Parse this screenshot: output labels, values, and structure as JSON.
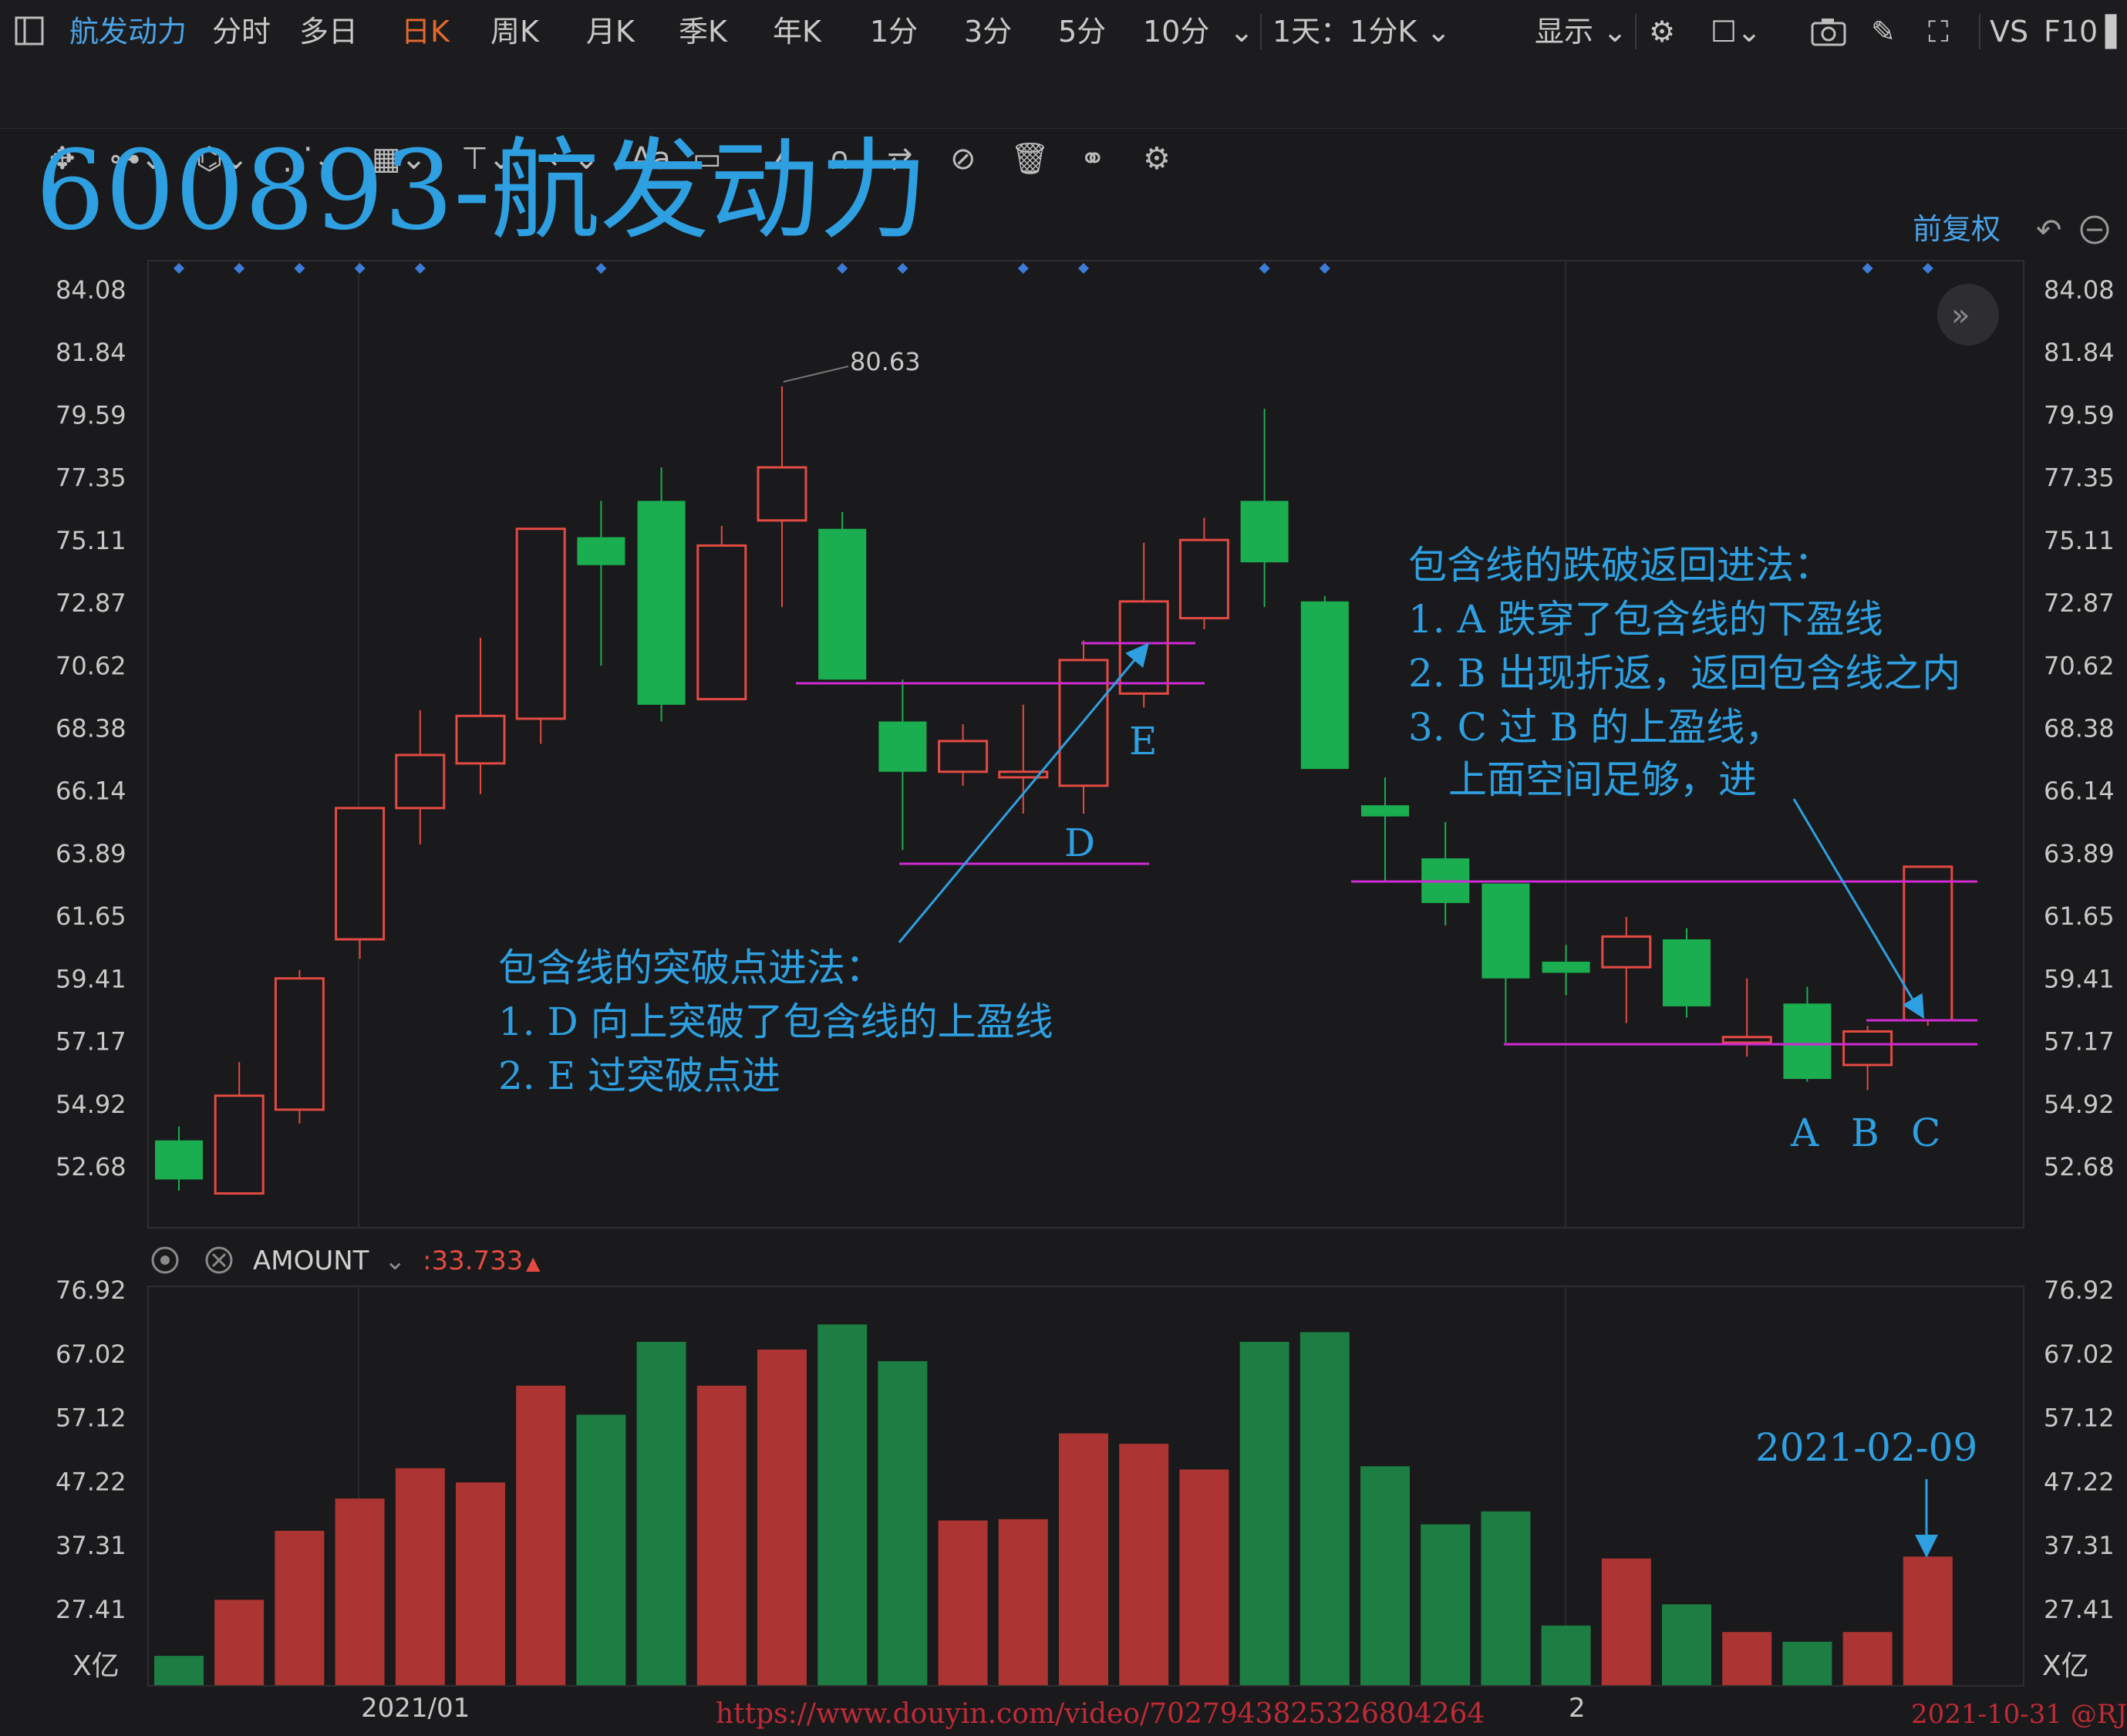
{
  "toolbar": {
    "stock_name": "航发动力",
    "periods": [
      "分时",
      "多日",
      "日K",
      "周K",
      "月K",
      "季K",
      "年K",
      "1分",
      "3分",
      "5分",
      "10分"
    ],
    "active_period": "日K",
    "combo": "1天：1分K",
    "display_label": "显示",
    "vs_label": "VS",
    "f10_label": "F10"
  },
  "drawing_tools": {
    "icons": [
      "move-icon",
      "segment-icon",
      "channel-icon",
      "wave-icon",
      "fib-icon",
      "measure-icon",
      "arrow-icon",
      "text-icon",
      "comment-icon",
      "ruler-icon",
      "magnet-icon",
      "sync-icon",
      "hide-icon",
      "delete-icon",
      "link-icon",
      "settings-icon"
    ],
    "text_tool_label": "Aa"
  },
  "chart_title": "600893-航发动力",
  "adjust_label": "前复权",
  "colors": {
    "up": "#e34a42",
    "down": "#1aae50",
    "vol_up": "#ac3432",
    "vol_down": "#1c7e43",
    "annotation": "#2e9fe0",
    "magenta": "#d02ad3",
    "background": "#1a1a1c",
    "marker": "#3d7bd9"
  },
  "chart_data": [
    {
      "type": "candlestick",
      "ylim": [
        51.6,
        85.2
      ],
      "y_ticks": [
        52.68,
        54.92,
        57.17,
        59.41,
        61.65,
        63.89,
        66.14,
        68.38,
        70.62,
        72.87,
        75.11,
        77.35,
        79.59,
        81.84,
        84.08
      ],
      "x_tick_labels": [
        "2021/01",
        "2"
      ],
      "max_label": "80.63",
      "candles": [
        {
          "o": 53.6,
          "c": 52.2,
          "h": 54.1,
          "l": 51.8
        },
        {
          "o": 51.7,
          "c": 55.2,
          "h": 56.4,
          "l": 51.7
        },
        {
          "o": 54.7,
          "c": 59.4,
          "h": 59.7,
          "l": 54.2
        },
        {
          "o": 60.8,
          "c": 65.5,
          "h": 65.5,
          "l": 60.1
        },
        {
          "o": 65.5,
          "c": 67.4,
          "h": 69.0,
          "l": 64.2
        },
        {
          "o": 67.1,
          "c": 68.8,
          "h": 71.6,
          "l": 66.0
        },
        {
          "o": 68.7,
          "c": 75.5,
          "h": 75.5,
          "l": 67.8
        },
        {
          "o": 75.2,
          "c": 74.2,
          "h": 76.5,
          "l": 70.6
        },
        {
          "o": 76.5,
          "c": 69.2,
          "h": 77.7,
          "l": 68.6
        },
        {
          "o": 69.4,
          "c": 74.9,
          "h": 75.6,
          "l": 69.4
        },
        {
          "o": 75.8,
          "c": 77.7,
          "h": 80.6,
          "l": 72.7
        },
        {
          "o": 75.5,
          "c": 70.1,
          "h": 76.1,
          "l": 70.1
        },
        {
          "o": 68.6,
          "c": 66.8,
          "h": 70.1,
          "l": 64.0
        },
        {
          "o": 66.8,
          "c": 67.9,
          "h": 68.5,
          "l": 66.3
        },
        {
          "o": 66.6,
          "c": 66.8,
          "h": 69.2,
          "l": 65.3
        },
        {
          "o": 66.3,
          "c": 70.8,
          "h": 71.5,
          "l": 65.3
        },
        {
          "o": 69.6,
          "c": 72.9,
          "h": 75.0,
          "l": 69.1
        },
        {
          "o": 72.3,
          "c": 75.1,
          "h": 75.9,
          "l": 71.9
        },
        {
          "o": 76.5,
          "c": 74.3,
          "h": 79.8,
          "l": 72.7
        },
        {
          "o": 72.9,
          "c": 66.9,
          "h": 73.1,
          "l": 66.9
        },
        {
          "o": 65.6,
          "c": 65.2,
          "h": 66.6,
          "l": 62.9
        },
        {
          "o": 63.7,
          "c": 62.1,
          "h": 65.0,
          "l": 61.3
        },
        {
          "o": 62.8,
          "c": 59.4,
          "h": 62.8,
          "l": 57.1
        },
        {
          "o": 60.0,
          "c": 59.6,
          "h": 60.6,
          "l": 58.8
        },
        {
          "o": 59.8,
          "c": 60.9,
          "h": 61.6,
          "l": 57.8
        },
        {
          "o": 60.8,
          "c": 58.4,
          "h": 61.2,
          "l": 58.0
        },
        {
          "o": 57.1,
          "c": 57.3,
          "h": 59.4,
          "l": 56.6
        },
        {
          "o": 58.5,
          "c": 55.8,
          "h": 59.1,
          "l": 55.7
        },
        {
          "o": 56.3,
          "c": 57.5,
          "h": 57.7,
          "l": 55.4
        },
        {
          "o": 57.9,
          "c": 63.4,
          "h": 63.4,
          "l": 57.7
        }
      ]
    },
    {
      "type": "bar",
      "indicator": "AMOUNT",
      "current_value": ":33.733",
      "unit_label": "X亿",
      "ylim": [
        17.5,
        78.0
      ],
      "y_ticks": [
        27.41,
        37.31,
        47.22,
        57.12,
        67.02,
        76.92
      ],
      "values": [
        20.1,
        28.8,
        39.5,
        44.5,
        49.2,
        47.0,
        62.0,
        57.5,
        68.8,
        62.0,
        67.6,
        71.5,
        65.8,
        41.1,
        41.3,
        54.6,
        53.0,
        49.0,
        68.8,
        70.3,
        49.5,
        40.5,
        42.5,
        24.8,
        35.2,
        28.1,
        23.8,
        22.3,
        23.8,
        35.5
      ]
    }
  ],
  "annotations": {
    "label_d": "D",
    "label_e": "E",
    "label_a": "A",
    "label_b": "B",
    "label_c": "C",
    "breakout_title": "包含线的突破点进法：",
    "breakout_line1": "1. D 向上突破了包含线的上盈线",
    "breakout_line2": "2. E 过突破点进",
    "breakdown_title": "包含线的跌破返回进法：",
    "breakdown_line1": "1. A 跌穿了包含线的下盈线",
    "breakdown_line2": "2. B 出现折返，返回包含线之内",
    "breakdown_line3": "3. C 过 B 的上盈线，",
    "breakdown_line4": "上面空间足够，进",
    "date_note": "2021-02-09"
  },
  "watermark": {
    "url": "https://www.douyin.com/video/7027943825326804264",
    "credit": "2021-10-31 @RJ"
  }
}
